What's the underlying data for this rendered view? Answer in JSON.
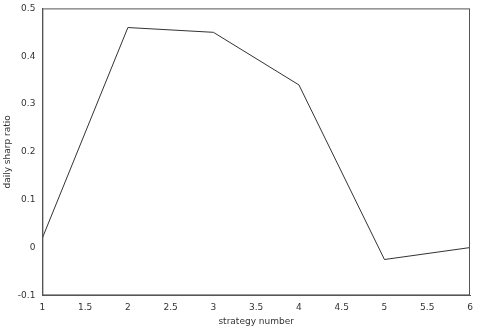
{
  "chart_data": {
    "type": "line",
    "x_label": "strategy number",
    "y_label": "daily sharp ratio",
    "x": [
      1,
      2,
      3,
      4,
      5,
      6
    ],
    "values": [
      0.02,
      0.46,
      0.45,
      0.34,
      -0.025,
      0.0
    ],
    "color": "#333333",
    "marker": "none",
    "grid": false,
    "xlim": [
      1,
      6
    ],
    "xticks": [
      1,
      1.5,
      2,
      2.5,
      3,
      3.5,
      4,
      4.5,
      5,
      5.5,
      6
    ],
    "ylim": [
      -0.1,
      0.5
    ],
    "yticks": [
      -0.1,
      0,
      0.1,
      0.2,
      0.3,
      0.4,
      0.5
    ]
  }
}
